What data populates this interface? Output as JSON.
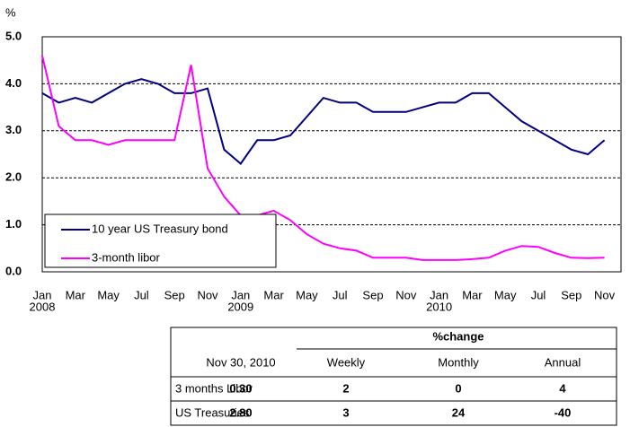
{
  "chart_data": {
    "type": "line",
    "ylabel": "%",
    "x": [
      "2008-01",
      "2008-02",
      "2008-03",
      "2008-04",
      "2008-05",
      "2008-06",
      "2008-07",
      "2008-08",
      "2008-09",
      "2008-10",
      "2008-11",
      "2008-12",
      "2009-01",
      "2009-02",
      "2009-03",
      "2009-04",
      "2009-05",
      "2009-06",
      "2009-07",
      "2009-08",
      "2009-09",
      "2009-10",
      "2009-11",
      "2009-12",
      "2010-01",
      "2010-02",
      "2010-03",
      "2010-04",
      "2010-05",
      "2010-06",
      "2010-07",
      "2010-08",
      "2010-09",
      "2010-10",
      "2010-11"
    ],
    "series": [
      {
        "name": "10 year US Treasury bond",
        "color": "#000080",
        "values": [
          3.8,
          3.6,
          3.7,
          3.6,
          3.8,
          4.0,
          4.1,
          4.0,
          3.8,
          3.8,
          3.9,
          2.6,
          2.3,
          2.8,
          2.8,
          2.9,
          3.3,
          3.7,
          3.6,
          3.6,
          3.4,
          3.4,
          3.4,
          3.5,
          3.6,
          3.6,
          3.8,
          3.8,
          3.5,
          3.2,
          3.0,
          2.8,
          2.6,
          2.5,
          2.8
        ]
      },
      {
        "name": "3-month libor",
        "color": "#ff00ff",
        "values": [
          4.6,
          3.1,
          2.8,
          2.8,
          2.7,
          2.8,
          2.8,
          2.8,
          2.8,
          4.4,
          2.2,
          1.6,
          1.2,
          1.2,
          1.3,
          1.1,
          0.8,
          0.6,
          0.5,
          0.45,
          0.3,
          0.3,
          0.3,
          0.25,
          0.25,
          0.25,
          0.27,
          0.3,
          0.45,
          0.55,
          0.53,
          0.4,
          0.3,
          0.29,
          0.3
        ]
      }
    ],
    "xlim": [
      "2008-01",
      "2010-12"
    ],
    "xticks": [
      {
        "value": "2008-01",
        "label": "Jan"
      },
      {
        "value": "2008-03",
        "label": "Mar"
      },
      {
        "value": "2008-05",
        "label": "May"
      },
      {
        "value": "2008-07",
        "label": "Jul"
      },
      {
        "value": "2008-09",
        "label": "Sep"
      },
      {
        "value": "2008-11",
        "label": "Nov"
      },
      {
        "value": "2009-01",
        "label": "Jan"
      },
      {
        "value": "2009-03",
        "label": "Mar"
      },
      {
        "value": "2009-05",
        "label": "May"
      },
      {
        "value": "2009-07",
        "label": "Jul"
      },
      {
        "value": "2009-09",
        "label": "Sep"
      },
      {
        "value": "2009-11",
        "label": "Nov"
      },
      {
        "value": "2010-01",
        "label": "Jan"
      },
      {
        "value": "2010-03",
        "label": "Mar"
      },
      {
        "value": "2010-05",
        "label": "May"
      },
      {
        "value": "2010-07",
        "label": "Jul"
      },
      {
        "value": "2010-09",
        "label": "Sep"
      },
      {
        "value": "2010-11",
        "label": "Nov"
      }
    ],
    "x_year_labels": [
      {
        "value": "2008-01",
        "label": "2008"
      },
      {
        "value": "2009-01",
        "label": "2009"
      },
      {
        "value": "2010-01",
        "label": "2010"
      }
    ],
    "ylim": [
      0,
      5
    ],
    "yticks": [
      {
        "value": 0,
        "label": "0.0"
      },
      {
        "value": 1,
        "label": "1.0"
      },
      {
        "value": 2,
        "label": "2.0"
      },
      {
        "value": 3,
        "label": "3.0"
      },
      {
        "value": 4,
        "label": "4.0"
      },
      {
        "value": 5,
        "label": "5.0"
      }
    ],
    "grid": true,
    "legend": "lower left"
  },
  "table": {
    "group_header": "%change",
    "columns": [
      "Nov 30, 2010",
      "Weekly",
      "Monthly",
      "Annual"
    ],
    "rows": [
      [
        "3 months Libor",
        "0.30",
        "2",
        "0",
        "4"
      ],
      [
        "US Treasuries",
        "2.80",
        "3",
        "24",
        "-40"
      ]
    ]
  }
}
